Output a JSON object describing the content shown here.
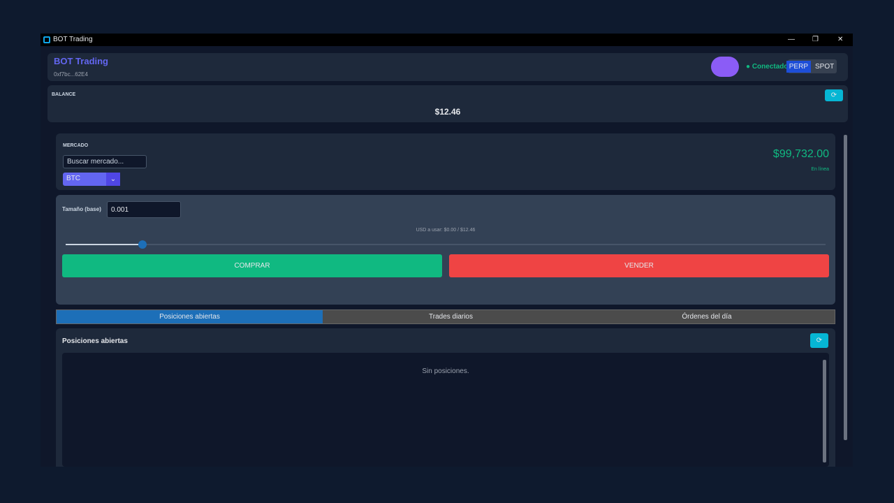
{
  "window": {
    "title": "BOT Trading"
  },
  "header": {
    "title": "BOT Trading",
    "address": "0xf7bc...62E4",
    "status": "Conectado",
    "modes": [
      "PERP",
      "SPOT"
    ]
  },
  "balance": {
    "label": "BALANCE",
    "value": "$12.46"
  },
  "market": {
    "label": "MERCADO",
    "search_placeholder": "Buscar mercado...",
    "selected": "BTC",
    "price": "$99,732.00",
    "price_status": "En línea"
  },
  "order": {
    "size_label": "Tamaño (base)",
    "size": "0.001",
    "usd_info": "USD a usar: $0.00 / $12.46",
    "buy": "COMPRAR",
    "sell": "VENDER"
  },
  "tabs": [
    "Posiciones abiertas",
    "Trades diarios",
    "Órdenes del día"
  ],
  "positions": {
    "title": "Posiciones abiertas",
    "empty": "Sin posiciones."
  }
}
